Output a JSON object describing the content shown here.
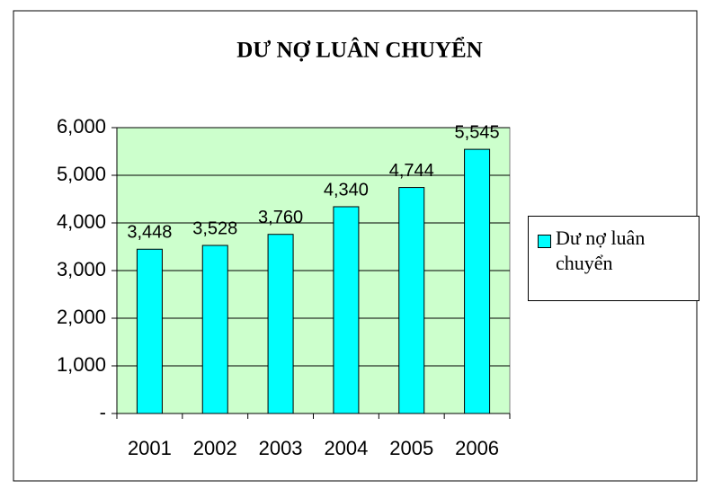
{
  "chart_data": {
    "type": "bar",
    "title": "DƯ NỢ LUÂN CHUYỂN",
    "categories": [
      "2001",
      "2002",
      "2003",
      "2004",
      "2005",
      "2006"
    ],
    "series": [
      {
        "name": "Dư nợ luân chuyển",
        "color": "#00ffff",
        "values": [
          3448,
          3528,
          3760,
          4340,
          4744,
          5545
        ],
        "value_labels": [
          "3,448",
          "3,528",
          "3,760",
          "4,340",
          "4,744",
          "5,545"
        ]
      }
    ],
    "ylim": [
      0,
      6000
    ],
    "yticks": [
      {
        "value": 0,
        "label": "-"
      },
      {
        "value": 1000,
        "label": "1,000"
      },
      {
        "value": 2000,
        "label": "2,000"
      },
      {
        "value": 3000,
        "label": "3,000"
      },
      {
        "value": 4000,
        "label": "4,000"
      },
      {
        "value": 5000,
        "label": "5,000"
      },
      {
        "value": 6000,
        "label": "6,000"
      }
    ],
    "grid": true,
    "plot_background": "#ccffcc",
    "legend": "right"
  }
}
